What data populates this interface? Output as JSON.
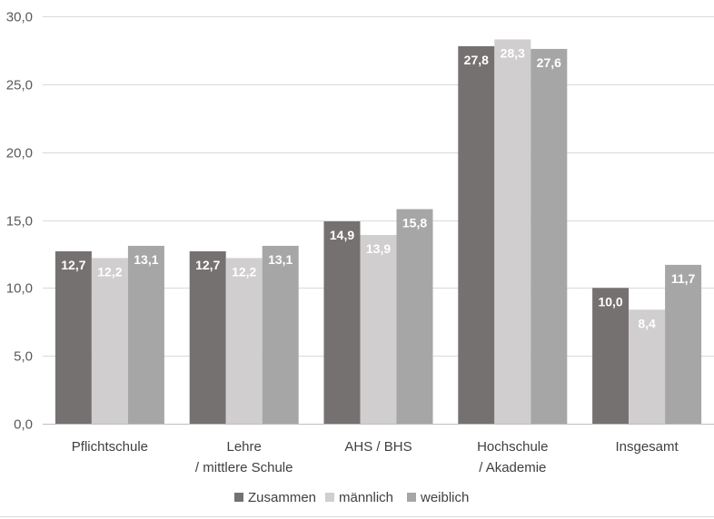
{
  "chart_data": {
    "type": "bar",
    "categories": [
      [
        "Pflichtschule"
      ],
      [
        "Lehre",
        "/ mittlere Schule"
      ],
      [
        "AHS / BHS"
      ],
      [
        "Hochschule",
        "/ Akademie"
      ],
      [
        "Insgesamt"
      ]
    ],
    "series": [
      {
        "name": "Zusammen",
        "color": "#767171",
        "values": [
          12.7,
          12.7,
          14.9,
          27.8,
          10.0
        ],
        "labels": [
          "12,7",
          "12,7",
          "14,9",
          "27,8",
          "10,0"
        ]
      },
      {
        "name": "männlich",
        "color": "#d0cece",
        "values": [
          12.2,
          12.2,
          13.9,
          28.3,
          8.4
        ],
        "labels": [
          "12,2",
          "12,2",
          "13,9",
          "28,3",
          "8,4"
        ]
      },
      {
        "name": "weiblich",
        "color": "#a6a6a6",
        "values": [
          13.1,
          13.1,
          15.8,
          27.6,
          11.7
        ],
        "labels": [
          "13,1",
          "13,1",
          "15,8",
          "27,6",
          "11,7"
        ]
      }
    ],
    "ylim": [
      0,
      30
    ],
    "yticks": [
      0,
      5,
      10,
      15,
      20,
      25,
      30
    ],
    "ytick_labels": [
      "0,0",
      "5,0",
      "10,0",
      "15,0",
      "20,0",
      "25,0",
      "30,0"
    ],
    "grid": true,
    "legend_position": "bottom",
    "title": "",
    "xlabel": "",
    "ylabel": ""
  }
}
